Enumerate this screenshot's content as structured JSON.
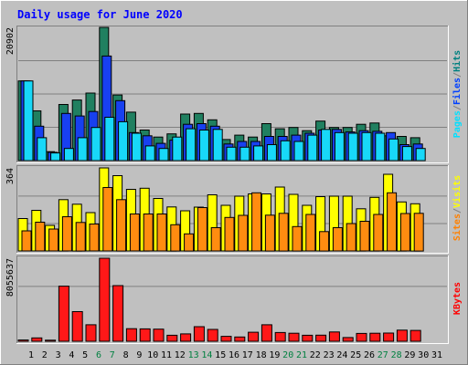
{
  "chart_data": {
    "type": "bar",
    "title": "Daily usage for June 2020",
    "categories": [
      "1",
      "2",
      "3",
      "4",
      "5",
      "6",
      "7",
      "8",
      "9",
      "10",
      "11",
      "12",
      "13",
      "14",
      "15",
      "16",
      "17",
      "18",
      "19",
      "20",
      "21",
      "22",
      "23",
      "24",
      "25",
      "26",
      "27",
      "28",
      "29",
      "30",
      "31"
    ],
    "weekend_days": [
      "6",
      "7",
      "13",
      "14",
      "20",
      "21",
      "27",
      "28"
    ],
    "panels": [
      {
        "name": "hits-files-pages",
        "max_label": "20902",
        "ymax": 20902,
        "legend": [
          {
            "label": "Pages",
            "color": "#00e0ff"
          },
          {
            "label": "/",
            "color": "#808080"
          },
          {
            "label": "Files",
            "color": "#0040ff"
          },
          {
            "label": "/",
            "color": "#808080"
          },
          {
            "label": "Hits",
            "color": "#008080"
          }
        ],
        "series": [
          {
            "name": "Hits",
            "color": "#208060",
            "values": [
              12500,
              7800,
              1400,
              8800,
              9500,
              10600,
              20902,
              10300,
              7600,
              4800,
              3700,
              4200,
              7300,
              7400,
              6400,
              3300,
              4000,
              3700,
              5800,
              5000,
              5200,
              4700,
              6200,
              5200,
              5200,
              5700,
              5900,
              3900,
              3800,
              3600,
              0
            ]
          },
          {
            "name": "Files",
            "color": "#1840f0",
            "values": [
              12500,
              5400,
              1300,
              7400,
              7000,
              7700,
              16400,
              9400,
              4400,
              3900,
              2700,
              3200,
              5700,
              5800,
              5400,
              2600,
              3000,
              3000,
              3800,
              3800,
              4000,
              4300,
              4800,
              4900,
              4500,
              4700,
              4600,
              4400,
              2500,
              2600,
              0
            ]
          },
          {
            "name": "Pages",
            "color": "#18d8f8",
            "values": [
              12500,
              3600,
              1200,
              1900,
              3600,
              5200,
              6800,
              6100,
              4300,
              2300,
              1900,
              3700,
              5000,
              4800,
              4900,
              2100,
              2100,
              2300,
              2500,
              3100,
              3000,
              4000,
              4900,
              4400,
              4300,
              4400,
              4300,
              3400,
              2200,
              1900,
              0
            ]
          }
        ]
      },
      {
        "name": "visits-sites",
        "max_label": "364",
        "ymax": 364,
        "legend": [
          {
            "label": "Sites",
            "color": "#ff8000"
          },
          {
            "label": "/",
            "color": "#808080"
          },
          {
            "label": "Visits",
            "color": "#ffff00"
          }
        ],
        "series": [
          {
            "name": "Visits",
            "color": "#ffff00",
            "values": [
              142,
              178,
              112,
              225,
              205,
              168,
              364,
              330,
              270,
              275,
              230,
              193,
              176,
              192,
              246,
              200,
              240,
              250,
              250,
              280,
              248,
              200,
              238,
              240,
              240,
              185,
              235,
              336,
              215,
              207,
              0
            ]
          },
          {
            "name": "Sites",
            "color": "#ff8c10",
            "values": [
              88,
              126,
              96,
              150,
              125,
              118,
              278,
              225,
              162,
              162,
              162,
              115,
              75,
              190,
              102,
              147,
              156,
              255,
              157,
              165,
              107,
              160,
              85,
              102,
              120,
              130,
              160,
              255,
              164,
              165,
              0
            ]
          }
        ]
      },
      {
        "name": "kbytes",
        "max_label": "8055637",
        "ymax": 8055637,
        "legend": [
          {
            "label": "KBytes",
            "color": "#ff0000"
          }
        ],
        "series": [
          {
            "name": "KBytes",
            "color": "#ff1818",
            "values": [
              120000,
              330000,
              110000,
              5350000,
              2880000,
              1600000,
              8055637,
              5400000,
              1220000,
              1200000,
              1180000,
              580000,
              720000,
              1420000,
              1150000,
              480000,
              420000,
              880000,
              1600000,
              850000,
              780000,
              580000,
              590000,
              900000,
              360000,
              760000,
              780000,
              800000,
              1080000,
              1050000,
              0
            ]
          }
        ]
      }
    ]
  }
}
